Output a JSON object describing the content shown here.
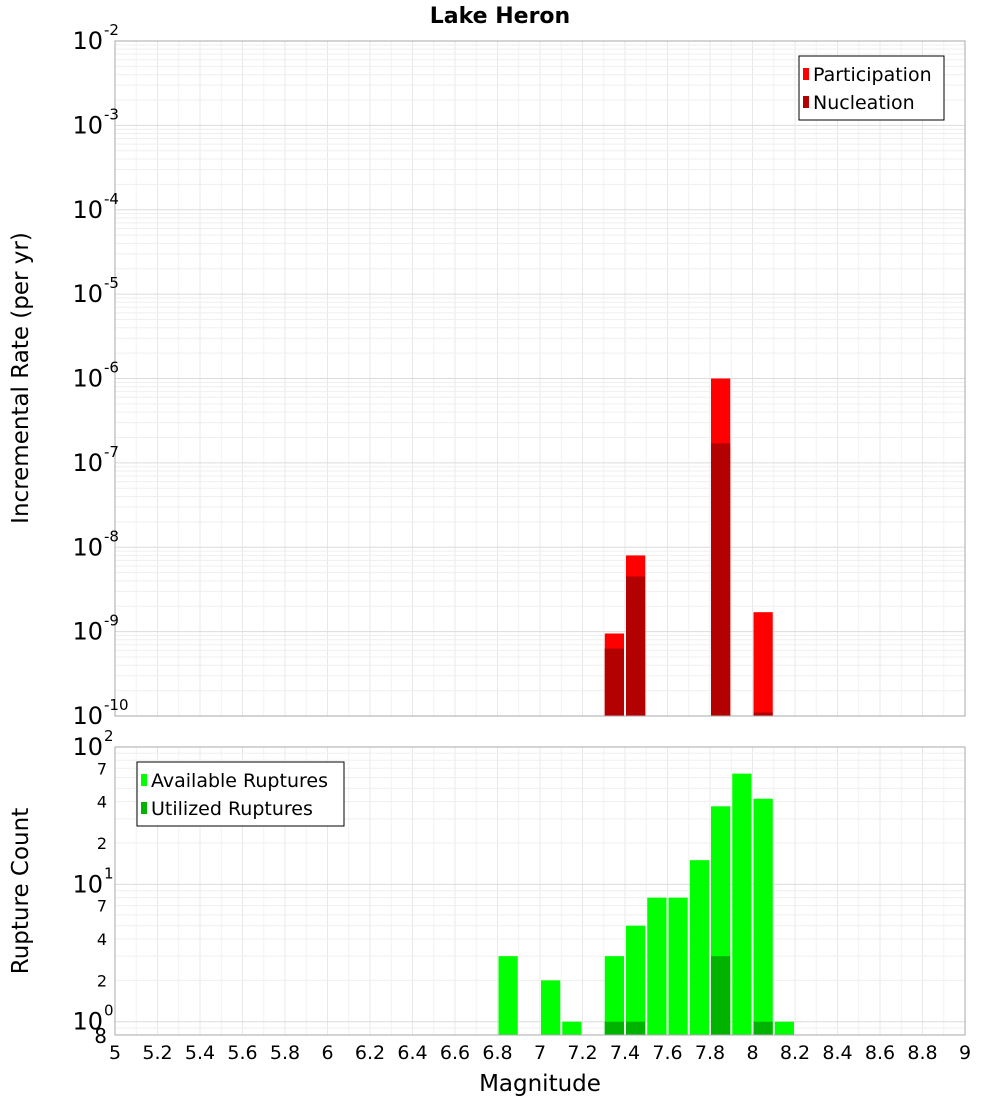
{
  "title": "Lake Heron",
  "x_axis": {
    "label": "Magnitude",
    "range": [
      5,
      9
    ],
    "ticks": [
      "5",
      "5.2",
      "5.4",
      "5.6",
      "5.8",
      "6",
      "6.2",
      "6.4",
      "6.6",
      "6.8",
      "7",
      "7.2",
      "7.4",
      "7.6",
      "7.8",
      "8",
      "8.2",
      "8.4",
      "8.6",
      "8.8",
      "9"
    ]
  },
  "chart_data": [
    {
      "type": "bar",
      "ylabel": "Incremental Rate (per yr)",
      "y_scale": "log",
      "ylim": [
        1e-10,
        0.01
      ],
      "y_ticks": [
        {
          "base": "10",
          "exp": "-10",
          "value": 1e-10
        },
        {
          "base": "10",
          "exp": "-9",
          "value": 1e-09
        },
        {
          "base": "10",
          "exp": "-8",
          "value": 1e-08
        },
        {
          "base": "10",
          "exp": "-7",
          "value": 1e-07
        },
        {
          "base": "10",
          "exp": "-6",
          "value": 1e-06
        },
        {
          "base": "10",
          "exp": "-5",
          "value": 1e-05
        },
        {
          "base": "10",
          "exp": "-4",
          "value": 0.0001
        },
        {
          "base": "10",
          "exp": "-3",
          "value": 0.001
        },
        {
          "base": "10",
          "exp": "-2",
          "value": 0.01
        }
      ],
      "legend_position": "top-right",
      "grid": true,
      "series": [
        {
          "name": "Participation",
          "color": "#ff0000",
          "points": [
            {
              "x": 7.35,
              "y": 9.5e-10
            },
            {
              "x": 7.45,
              "y": 8e-09
            },
            {
              "x": 7.85,
              "y": 1e-06
            },
            {
              "x": 8.05,
              "y": 1.7e-09
            }
          ]
        },
        {
          "name": "Nucleation",
          "color": "#b30000",
          "points": [
            {
              "x": 7.35,
              "y": 6.3e-10
            },
            {
              "x": 7.45,
              "y": 4.5e-09
            },
            {
              "x": 7.85,
              "y": 1.7e-07
            },
            {
              "x": 8.05,
              "y": 1.1e-10
            }
          ]
        }
      ]
    },
    {
      "type": "bar",
      "ylabel": "Rupture Count",
      "y_scale": "log",
      "ylim": [
        0.8,
        100
      ],
      "y_ticks": [
        {
          "base": "10",
          "exp": "0",
          "value": 1
        },
        {
          "base": "10",
          "exp": "1",
          "value": 10
        },
        {
          "base": "10",
          "exp": "2",
          "value": 100
        }
      ],
      "y_minor_labels": [
        {
          "label": "8",
          "value": 0.8
        },
        {
          "label": "2",
          "value": 2
        },
        {
          "label": "4",
          "value": 4
        },
        {
          "label": "7",
          "value": 7
        },
        {
          "label": "2",
          "value": 20
        },
        {
          "label": "4",
          "value": 40
        },
        {
          "label": "7",
          "value": 70
        }
      ],
      "legend_position": "top-left",
      "grid": true,
      "series": [
        {
          "name": "Available Ruptures",
          "color": "#00ff00",
          "points": [
            {
              "x": 6.85,
              "y": 3
            },
            {
              "x": 7.05,
              "y": 2
            },
            {
              "x": 7.15,
              "y": 1
            },
            {
              "x": 7.35,
              "y": 3
            },
            {
              "x": 7.45,
              "y": 5
            },
            {
              "x": 7.55,
              "y": 8
            },
            {
              "x": 7.65,
              "y": 8
            },
            {
              "x": 7.75,
              "y": 15
            },
            {
              "x": 7.85,
              "y": 37
            },
            {
              "x": 7.95,
              "y": 64
            },
            {
              "x": 8.05,
              "y": 42
            },
            {
              "x": 8.15,
              "y": 1
            }
          ]
        },
        {
          "name": "Utilized Ruptures",
          "color": "#00b300",
          "points": [
            {
              "x": 7.35,
              "y": 1
            },
            {
              "x": 7.45,
              "y": 1
            },
            {
              "x": 7.85,
              "y": 3
            },
            {
              "x": 8.05,
              "y": 1
            }
          ]
        }
      ]
    }
  ]
}
